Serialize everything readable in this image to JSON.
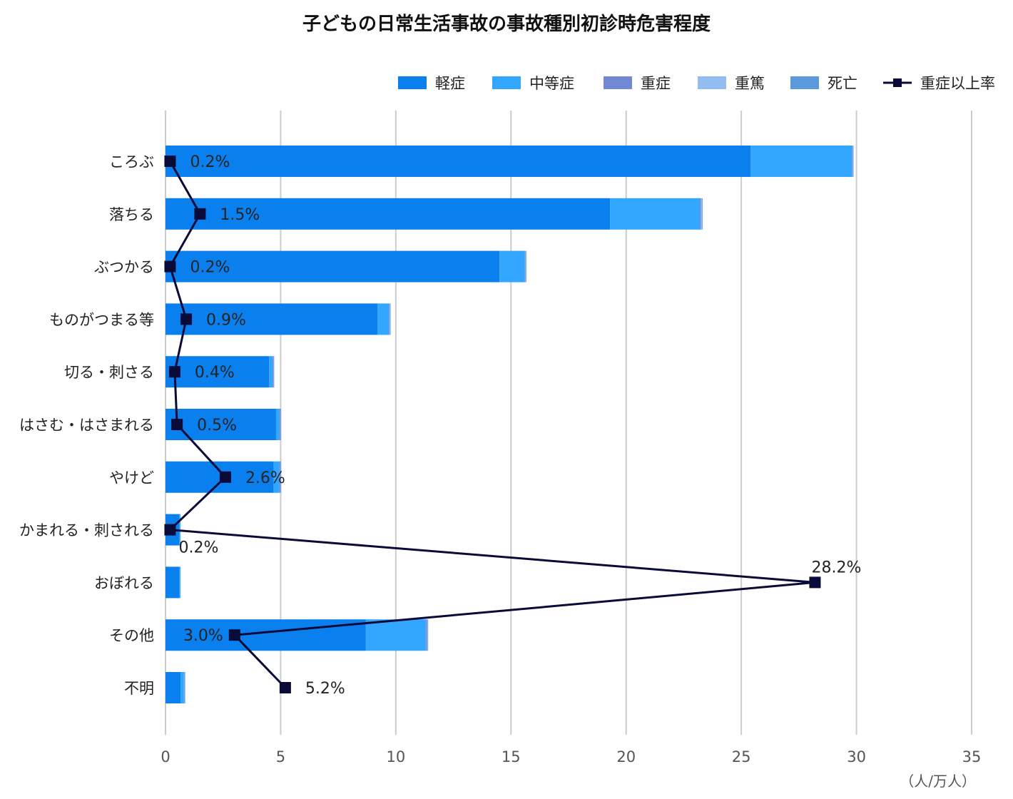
{
  "chart_data": {
    "type": "bar",
    "orientation": "horizontal",
    "stacked": true,
    "title": "子どもの日常生活事故の事故種別初診時危害程度",
    "unit_label": "（人/万人）",
    "xlim": [
      0,
      35
    ],
    "xticks": [
      0,
      5,
      10,
      15,
      20,
      25,
      30,
      35
    ],
    "grid": "vertical",
    "legend_position": "top-right",
    "categories": [
      "ころぶ",
      "落ちる",
      "ぶつかる",
      "ものがつまる等",
      "切る・刺さる",
      "はさむ・はさまれる",
      "やけど",
      "かまれる・刺される",
      "おぼれる",
      "その他",
      "不明"
    ],
    "series": [
      {
        "name": "軽症",
        "color": "#0a80ef",
        "values": [
          25.4,
          19.3,
          14.5,
          9.2,
          4.5,
          4.8,
          4.7,
          0.6,
          0.6,
          8.7,
          0.65
        ]
      },
      {
        "name": "中等症",
        "color": "#33a6ff",
        "values": [
          4.4,
          3.9,
          1.1,
          0.5,
          0.15,
          0.15,
          0.25,
          0.05,
          0.05,
          2.6,
          0.15
        ]
      },
      {
        "name": "重症",
        "color": "#7288d2",
        "values": [
          0.03,
          0.05,
          0.02,
          0.03,
          0.05,
          0.05,
          0.05,
          0.0,
          0.0,
          0.05,
          0.02
        ]
      },
      {
        "name": "重篤",
        "color": "#93bdf0",
        "values": [
          0.02,
          0.05,
          0.02,
          0.02,
          0.02,
          0.02,
          0.03,
          0.0,
          0.0,
          0.03,
          0.01
        ]
      },
      {
        "name": "死亡",
        "color": "#5c9bdb",
        "values": [
          0.01,
          0.02,
          0.01,
          0.01,
          0.0,
          0.0,
          0.0,
          0.0,
          0.0,
          0.01,
          0.01
        ]
      }
    ],
    "line_series": {
      "name": "重症以上率",
      "color": "#0a0a38",
      "values": [
        0.2,
        1.5,
        0.2,
        0.9,
        0.4,
        0.5,
        2.6,
        0.2,
        28.2,
        3.0,
        5.2
      ],
      "labels": [
        "0.2%",
        "1.5%",
        "0.2%",
        "0.9%",
        "0.4%",
        "0.5%",
        "2.6%",
        "0.2%",
        "28.2%",
        "3.0%",
        "5.2%"
      ]
    }
  }
}
